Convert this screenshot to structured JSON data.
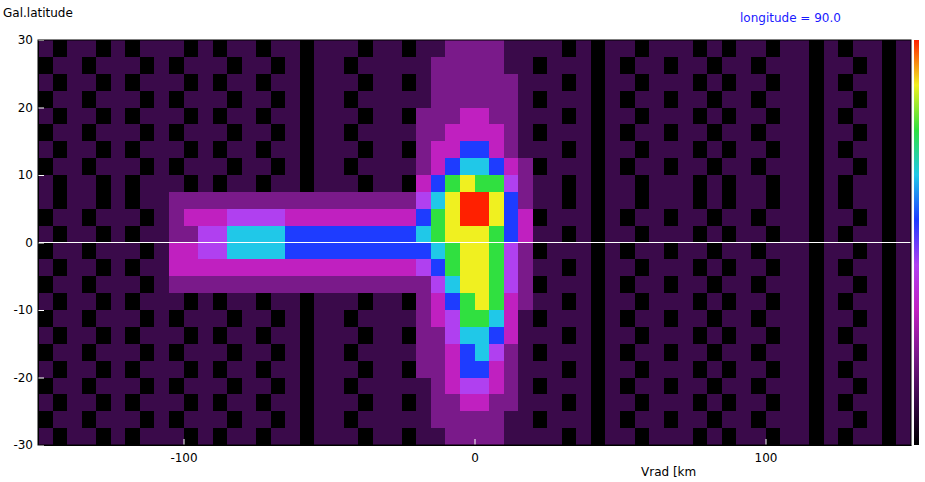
{
  "chart_data": {
    "type": "heatmap",
    "title": "longitude = 90.0",
    "ylabel": "Gal.latitude",
    "xlabel": "Vrad [km",
    "xlim": [
      -150,
      150
    ],
    "ylim": [
      -30,
      30
    ],
    "xticks": [
      -100,
      0,
      100
    ],
    "yticks": [
      -30,
      -20,
      -10,
      0,
      10,
      20,
      30
    ],
    "hline": 0,
    "colorbar_range": [
      0,
      9
    ],
    "x": [
      -147.5,
      -142.5,
      -137.5,
      -132.5,
      -127.5,
      -122.5,
      -117.5,
      -112.5,
      -107.5,
      -102.5,
      -97.5,
      -92.5,
      -87.5,
      -82.5,
      -77.5,
      -72.5,
      -67.5,
      -62.5,
      -57.5,
      -52.5,
      -47.5,
      -42.5,
      -37.5,
      -32.5,
      -27.5,
      -22.5,
      -17.5,
      -12.5,
      -7.5,
      -2.5,
      2.5,
      7.5,
      12.5,
      17.5,
      22.5,
      27.5,
      32.5,
      37.5,
      42.5,
      47.5,
      52.5,
      57.5,
      62.5,
      67.5,
      72.5,
      77.5,
      82.5,
      87.5,
      92.5,
      97.5,
      102.5,
      107.5,
      112.5,
      117.5,
      122.5,
      127.5,
      132.5,
      137.5,
      142.5,
      147.5
    ],
    "y": [
      28.75,
      26.25,
      23.75,
      21.25,
      18.75,
      16.25,
      13.75,
      11.25,
      8.75,
      6.25,
      3.75,
      1.25,
      -1.25,
      -3.75,
      -6.25,
      -8.75,
      -11.25,
      -13.75,
      -16.25,
      -18.75,
      -21.25,
      -23.75,
      -26.25,
      -28.75
    ],
    "values": [
      [
        1,
        0,
        1,
        1,
        0,
        1,
        0,
        1,
        1,
        1,
        0,
        1,
        0,
        1,
        1,
        0,
        1,
        1,
        0,
        1,
        1,
        1,
        0,
        1,
        1,
        0,
        1,
        1,
        2,
        2,
        2,
        2,
        1,
        1,
        1,
        1,
        0,
        1,
        0,
        1,
        1,
        0,
        1,
        1,
        1,
        0,
        1,
        0,
        1,
        1,
        0,
        1,
        1,
        0,
        1,
        0,
        1,
        1,
        0,
        1
      ],
      [
        0,
        1,
        1,
        0,
        1,
        1,
        1,
        0,
        1,
        0,
        1,
        1,
        1,
        0,
        1,
        1,
        0,
        1,
        0,
        1,
        1,
        0,
        1,
        1,
        1,
        1,
        1,
        2,
        2,
        2,
        2,
        2,
        1,
        1,
        0,
        1,
        1,
        1,
        0,
        1,
        0,
        1,
        1,
        0,
        1,
        1,
        0,
        1,
        1,
        0,
        1,
        1,
        1,
        0,
        1,
        1,
        0,
        1,
        0,
        1
      ],
      [
        1,
        0,
        1,
        1,
        0,
        1,
        0,
        1,
        1,
        1,
        0,
        1,
        0,
        1,
        1,
        0,
        1,
        1,
        0,
        1,
        1,
        1,
        0,
        1,
        1,
        0,
        1,
        2,
        2,
        2,
        2,
        2,
        2,
        1,
        1,
        1,
        0,
        1,
        0,
        1,
        1,
        0,
        1,
        1,
        1,
        0,
        1,
        0,
        1,
        1,
        0,
        1,
        1,
        0,
        1,
        0,
        1,
        1,
        0,
        1
      ],
      [
        0,
        1,
        1,
        0,
        1,
        1,
        1,
        0,
        1,
        0,
        1,
        1,
        1,
        0,
        1,
        1,
        0,
        1,
        0,
        1,
        1,
        0,
        1,
        1,
        1,
        1,
        1,
        2,
        2,
        2,
        2,
        2,
        2,
        1,
        0,
        1,
        1,
        1,
        0,
        1,
        0,
        1,
        1,
        0,
        1,
        1,
        0,
        1,
        1,
        0,
        1,
        1,
        1,
        0,
        1,
        1,
        0,
        1,
        0,
        1
      ],
      [
        1,
        0,
        1,
        1,
        0,
        1,
        0,
        1,
        1,
        1,
        0,
        1,
        0,
        1,
        1,
        0,
        1,
        1,
        0,
        1,
        1,
        1,
        0,
        1,
        1,
        0,
        2,
        2,
        2,
        3,
        3,
        2,
        2,
        1,
        1,
        1,
        0,
        1,
        0,
        1,
        1,
        0,
        1,
        1,
        1,
        0,
        1,
        0,
        1,
        1,
        0,
        1,
        1,
        0,
        1,
        0,
        1,
        1,
        0,
        1
      ],
      [
        0,
        1,
        1,
        0,
        1,
        1,
        1,
        0,
        1,
        0,
        1,
        1,
        1,
        0,
        1,
        1,
        0,
        1,
        0,
        1,
        1,
        0,
        1,
        1,
        1,
        1,
        2,
        2,
        3,
        3,
        3,
        3,
        2,
        1,
        0,
        1,
        1,
        1,
        0,
        1,
        0,
        1,
        1,
        0,
        1,
        1,
        0,
        1,
        1,
        0,
        1,
        1,
        1,
        0,
        1,
        1,
        0,
        1,
        0,
        1
      ],
      [
        1,
        0,
        1,
        1,
        0,
        1,
        0,
        1,
        1,
        1,
        0,
        1,
        0,
        1,
        1,
        0,
        1,
        1,
        0,
        1,
        1,
        1,
        0,
        1,
        1,
        0,
        2,
        3,
        3,
        5,
        5,
        3,
        2,
        1,
        1,
        1,
        0,
        1,
        0,
        1,
        1,
        0,
        1,
        1,
        1,
        0,
        1,
        0,
        1,
        1,
        0,
        1,
        1,
        0,
        1,
        0,
        1,
        1,
        0,
        1
      ],
      [
        0,
        1,
        1,
        0,
        1,
        1,
        1,
        0,
        1,
        0,
        1,
        1,
        1,
        0,
        1,
        1,
        0,
        1,
        0,
        1,
        1,
        0,
        1,
        1,
        1,
        1,
        2,
        3,
        5,
        6,
        6,
        5,
        3,
        2,
        0,
        1,
        1,
        1,
        0,
        1,
        0,
        1,
        1,
        0,
        1,
        1,
        0,
        1,
        1,
        0,
        1,
        1,
        1,
        0,
        1,
        1,
        0,
        1,
        0,
        1
      ],
      [
        1,
        0,
        1,
        1,
        0,
        1,
        0,
        1,
        1,
        1,
        0,
        1,
        0,
        1,
        1,
        0,
        1,
        1,
        0,
        1,
        1,
        1,
        0,
        1,
        1,
        0,
        3,
        5,
        7,
        8,
        7,
        7,
        4,
        2,
        1,
        1,
        0,
        1,
        0,
        1,
        1,
        0,
        1,
        1,
        1,
        0,
        1,
        0,
        1,
        1,
        0,
        1,
        1,
        0,
        1,
        0,
        1,
        1,
        0,
        1
      ],
      [
        1,
        0,
        1,
        1,
        0,
        1,
        0,
        1,
        1,
        2,
        2,
        2,
        2,
        2,
        2,
        2,
        2,
        2,
        2,
        2,
        2,
        2,
        2,
        2,
        2,
        2,
        4,
        6,
        8,
        9,
        9,
        8,
        5,
        2,
        1,
        1,
        0,
        1,
        0,
        1,
        1,
        0,
        1,
        1,
        1,
        0,
        1,
        0,
        1,
        1,
        0,
        1,
        1,
        0,
        1,
        0,
        1,
        1,
        0,
        1
      ],
      [
        0,
        1,
        1,
        0,
        1,
        1,
        1,
        0,
        1,
        2,
        3,
        3,
        3,
        4,
        4,
        4,
        4,
        3,
        3,
        3,
        3,
        3,
        3,
        3,
        3,
        3,
        5,
        7,
        8,
        9,
        9,
        8,
        5,
        3,
        0,
        1,
        1,
        1,
        0,
        1,
        0,
        1,
        1,
        0,
        1,
        1,
        0,
        1,
        1,
        0,
        1,
        1,
        1,
        0,
        1,
        1,
        0,
        1,
        0,
        1
      ],
      [
        1,
        0,
        1,
        1,
        0,
        1,
        0,
        1,
        1,
        2,
        2,
        4,
        4,
        6,
        6,
        6,
        6,
        5,
        5,
        5,
        5,
        5,
        5,
        5,
        5,
        5,
        6,
        7,
        8,
        8,
        8,
        7,
        5,
        3,
        1,
        1,
        0,
        1,
        0,
        1,
        1,
        0,
        1,
        1,
        1,
        0,
        1,
        0,
        1,
        1,
        0,
        1,
        1,
        0,
        1,
        0,
        1,
        1,
        0,
        1
      ],
      [
        0,
        1,
        1,
        0,
        1,
        1,
        1,
        0,
        1,
        3,
        3,
        4,
        4,
        6,
        6,
        6,
        6,
        5,
        5,
        5,
        5,
        5,
        5,
        5,
        5,
        5,
        5,
        6,
        7,
        8,
        8,
        7,
        4,
        2,
        0,
        1,
        1,
        1,
        0,
        1,
        0,
        1,
        1,
        0,
        1,
        1,
        0,
        1,
        1,
        0,
        1,
        1,
        1,
        0,
        1,
        1,
        0,
        1,
        0,
        1
      ],
      [
        1,
        0,
        1,
        1,
        0,
        1,
        0,
        1,
        1,
        3,
        3,
        3,
        3,
        3,
        3,
        3,
        3,
        3,
        3,
        3,
        3,
        3,
        3,
        3,
        3,
        3,
        4,
        5,
        7,
        8,
        8,
        7,
        4,
        2,
        1,
        1,
        0,
        1,
        0,
        1,
        1,
        0,
        1,
        1,
        1,
        0,
        1,
        0,
        1,
        1,
        0,
        1,
        1,
        0,
        1,
        0,
        1,
        1,
        0,
        1
      ],
      [
        0,
        1,
        1,
        0,
        1,
        1,
        1,
        0,
        1,
        2,
        2,
        2,
        2,
        2,
        2,
        2,
        2,
        2,
        2,
        2,
        2,
        2,
        2,
        2,
        2,
        2,
        2,
        4,
        6,
        8,
        8,
        7,
        4,
        2,
        0,
        1,
        1,
        1,
        0,
        1,
        0,
        1,
        1,
        0,
        1,
        1,
        0,
        1,
        1,
        0,
        1,
        1,
        1,
        0,
        1,
        1,
        0,
        1,
        0,
        1
      ],
      [
        1,
        0,
        1,
        1,
        0,
        1,
        0,
        1,
        1,
        1,
        0,
        1,
        0,
        1,
        1,
        0,
        1,
        1,
        0,
        1,
        1,
        1,
        0,
        1,
        1,
        0,
        2,
        3,
        5,
        7,
        8,
        7,
        3,
        2,
        1,
        1,
        0,
        1,
        0,
        1,
        1,
        0,
        1,
        1,
        1,
        0,
        1,
        0,
        1,
        1,
        0,
        1,
        1,
        0,
        1,
        0,
        1,
        1,
        0,
        1
      ],
      [
        0,
        1,
        1,
        0,
        1,
        1,
        1,
        0,
        1,
        0,
        1,
        1,
        1,
        0,
        1,
        1,
        0,
        1,
        0,
        1,
        1,
        0,
        1,
        1,
        1,
        1,
        2,
        3,
        4,
        7,
        7,
        6,
        3,
        1,
        0,
        1,
        1,
        1,
        0,
        1,
        0,
        1,
        1,
        0,
        1,
        1,
        0,
        1,
        1,
        0,
        1,
        1,
        1,
        0,
        1,
        1,
        0,
        1,
        0,
        1
      ],
      [
        1,
        0,
        1,
        1,
        0,
        1,
        0,
        1,
        1,
        1,
        0,
        1,
        0,
        1,
        1,
        0,
        1,
        1,
        0,
        1,
        1,
        1,
        0,
        1,
        1,
        0,
        2,
        2,
        4,
        6,
        6,
        5,
        3,
        1,
        1,
        1,
        0,
        1,
        0,
        1,
        1,
        0,
        1,
        1,
        1,
        0,
        1,
        0,
        1,
        1,
        0,
        1,
        1,
        0,
        1,
        0,
        1,
        1,
        0,
        1
      ],
      [
        0,
        1,
        1,
        0,
        1,
        1,
        1,
        0,
        1,
        0,
        1,
        1,
        1,
        0,
        1,
        1,
        0,
        1,
        0,
        1,
        1,
        0,
        1,
        1,
        1,
        1,
        2,
        2,
        3,
        5,
        6,
        4,
        2,
        1,
        0,
        1,
        1,
        1,
        0,
        1,
        0,
        1,
        1,
        0,
        1,
        1,
        0,
        1,
        1,
        0,
        1,
        1,
        1,
        0,
        1,
        1,
        0,
        1,
        0,
        1
      ],
      [
        1,
        0,
        1,
        1,
        0,
        1,
        0,
        1,
        1,
        1,
        0,
        1,
        0,
        1,
        1,
        0,
        1,
        1,
        0,
        1,
        1,
        1,
        0,
        1,
        1,
        0,
        2,
        2,
        3,
        5,
        5,
        3,
        2,
        1,
        1,
        1,
        0,
        1,
        0,
        1,
        1,
        0,
        1,
        1,
        1,
        0,
        1,
        0,
        1,
        1,
        0,
        1,
        1,
        0,
        1,
        0,
        1,
        1,
        0,
        1
      ],
      [
        0,
        1,
        1,
        0,
        1,
        1,
        1,
        0,
        1,
        0,
        1,
        1,
        1,
        0,
        1,
        1,
        0,
        1,
        0,
        1,
        1,
        0,
        1,
        1,
        1,
        1,
        1,
        2,
        3,
        4,
        4,
        3,
        2,
        1,
        0,
        1,
        1,
        1,
        0,
        1,
        0,
        1,
        1,
        0,
        1,
        1,
        0,
        1,
        1,
        0,
        1,
        1,
        1,
        0,
        1,
        1,
        0,
        1,
        0,
        1
      ],
      [
        1,
        0,
        1,
        1,
        0,
        1,
        0,
        1,
        1,
        1,
        0,
        1,
        0,
        1,
        1,
        0,
        1,
        1,
        0,
        1,
        1,
        1,
        0,
        1,
        1,
        0,
        1,
        2,
        2,
        3,
        3,
        2,
        2,
        1,
        1,
        1,
        0,
        1,
        0,
        1,
        1,
        0,
        1,
        1,
        1,
        0,
        1,
        0,
        1,
        1,
        0,
        1,
        1,
        0,
        1,
        0,
        1,
        1,
        0,
        1
      ],
      [
        0,
        1,
        1,
        0,
        1,
        1,
        1,
        0,
        1,
        0,
        1,
        1,
        1,
        0,
        1,
        1,
        0,
        1,
        0,
        1,
        1,
        0,
        1,
        1,
        1,
        1,
        1,
        2,
        2,
        2,
        2,
        2,
        1,
        1,
        0,
        1,
        1,
        1,
        0,
        1,
        0,
        1,
        1,
        0,
        1,
        1,
        0,
        1,
        1,
        0,
        1,
        1,
        1,
        0,
        1,
        1,
        0,
        1,
        0,
        1
      ],
      [
        1,
        0,
        1,
        1,
        0,
        1,
        0,
        1,
        1,
        1,
        0,
        1,
        0,
        1,
        1,
        0,
        1,
        1,
        0,
        1,
        1,
        1,
        0,
        1,
        1,
        0,
        1,
        1,
        2,
        2,
        2,
        2,
        1,
        1,
        1,
        1,
        0,
        1,
        0,
        1,
        1,
        0,
        1,
        1,
        1,
        0,
        1,
        0,
        1,
        1,
        0,
        1,
        1,
        0,
        1,
        0,
        1,
        1,
        0,
        1
      ]
    ]
  }
}
